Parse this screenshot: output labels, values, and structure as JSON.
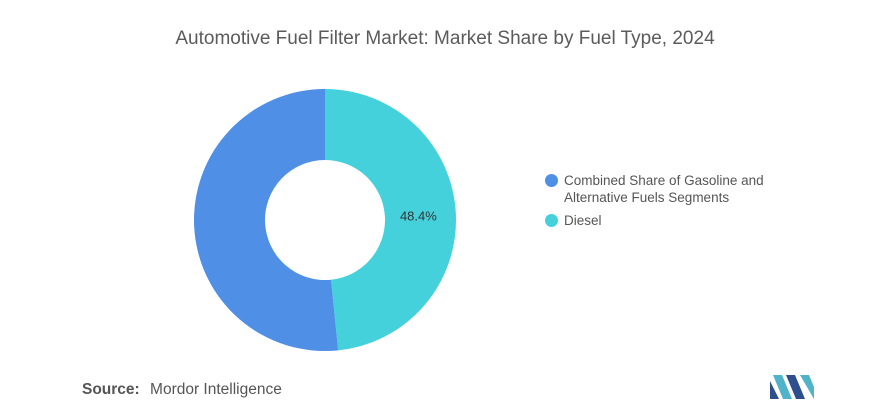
{
  "title": "Automotive Fuel Filter Market: Market Share by Fuel Type, 2024",
  "source": {
    "label": "Source:",
    "value": "Mordor Intelligence"
  },
  "logo_icon": "mordor-intelligence-logo-icon",
  "colors": {
    "gasoline_alt": "#4f8fe6",
    "diesel": "#44d1db"
  },
  "chart_data": {
    "type": "pie",
    "donut": true,
    "title": "Automotive Fuel Filter Market: Market Share by Fuel Type, 2024",
    "legend_position": "right",
    "slices": [
      {
        "label": "Combined Share of Gasoline and Alternative Fuels Segments",
        "value": 51.6,
        "color": "#4f8fe6",
        "data_label": ""
      },
      {
        "label": "Diesel",
        "value": 48.4,
        "color": "#44d1db",
        "data_label": "48.4%"
      }
    ]
  }
}
